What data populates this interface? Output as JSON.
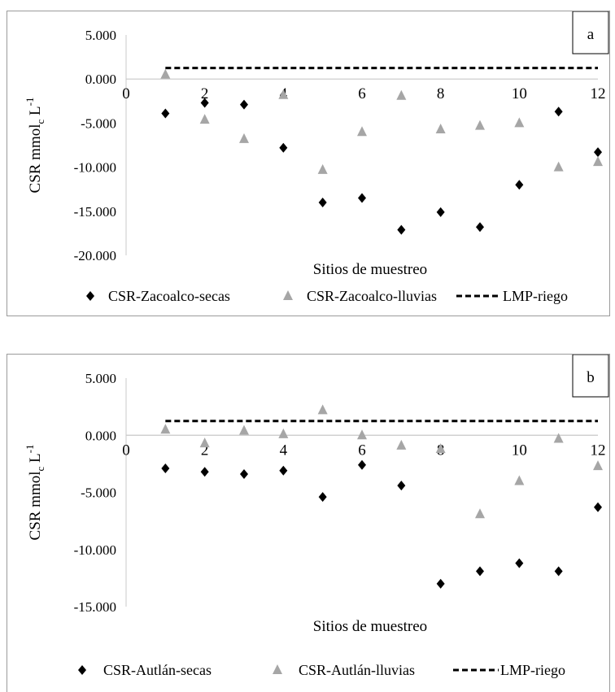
{
  "colors": {
    "secas": "#000000",
    "lluvias": "#a6a6a6",
    "lmp": "#000000"
  },
  "chart_data": [
    {
      "type": "scatter",
      "panel_label": "a",
      "xlabel": "Sitios de muestreo",
      "ylabel_main": "CSR mmol",
      "ylabel_sub": "c",
      "ylabel_unit": " L",
      "ylabel_sup": "-1",
      "ylim": [
        -20,
        5
      ],
      "xlim": [
        0,
        12
      ],
      "y_ticks": [
        5,
        0,
        -5,
        -10,
        -15,
        -20
      ],
      "y_tick_labels": [
        "5.000",
        "0.000",
        "-5.000",
        "-10.000",
        "-15.000",
        "-20.000"
      ],
      "x_ticks": [
        0,
        2,
        4,
        6,
        8,
        10,
        12
      ],
      "x_tick_labels": [
        "0",
        "2",
        "4",
        "6",
        "8",
        "10",
        "12"
      ],
      "legend_position": "bottom",
      "series": [
        {
          "name": "CSR-Zacoalco-secas",
          "marker": "diamond",
          "x": [
            1,
            2,
            3,
            4,
            5,
            6,
            7,
            8,
            9,
            10,
            11,
            12
          ],
          "y": [
            -3.9,
            -2.7,
            -2.9,
            -7.8,
            -14.0,
            -13.5,
            -17.1,
            -15.1,
            -16.8,
            -12.0,
            -3.7,
            -8.3
          ]
        },
        {
          "name": "CSR-Zacoalco-lluvias",
          "marker": "triangle",
          "x": [
            1,
            2,
            3,
            4,
            5,
            6,
            7,
            8,
            9,
            10,
            11,
            12
          ],
          "y": [
            0.5,
            -4.6,
            -6.8,
            -1.8,
            -10.3,
            -6.0,
            -1.9,
            -5.7,
            -5.3,
            -5.0,
            -10.0,
            -9.4
          ]
        },
        {
          "name": "LMP-riego",
          "marker": "dashed-line",
          "x": [
            1,
            12
          ],
          "y": [
            1.25,
            1.25
          ]
        }
      ]
    },
    {
      "type": "scatter",
      "panel_label": "b",
      "xlabel": "Sitios de muestreo",
      "ylabel_main": "CSR mmol",
      "ylabel_sub": "c",
      "ylabel_unit": " L",
      "ylabel_sup": "-1",
      "ylim": [
        -15,
        5
      ],
      "xlim": [
        0,
        12
      ],
      "y_ticks": [
        5,
        0,
        -5,
        -10,
        -15
      ],
      "y_tick_labels": [
        "5.000",
        "0.000",
        "-5.000",
        "-10.000",
        "-15.000"
      ],
      "x_ticks": [
        0,
        2,
        4,
        6,
        8,
        10,
        12
      ],
      "x_tick_labels": [
        "0",
        "2",
        "4",
        "6",
        "8",
        "10",
        "12"
      ],
      "legend_position": "bottom",
      "series": [
        {
          "name": "CSR-Autlán-secas",
          "marker": "diamond",
          "x": [
            1,
            2,
            3,
            4,
            5,
            6,
            7,
            8,
            9,
            10,
            11,
            12
          ],
          "y": [
            -2.9,
            -3.2,
            -3.4,
            -3.1,
            -5.4,
            -2.6,
            -4.4,
            -13.0,
            -11.9,
            -11.2,
            -11.9,
            -6.3
          ]
        },
        {
          "name": "CSR-Autlán-lluvias",
          "marker": "triangle",
          "x": [
            1,
            2,
            3,
            4,
            5,
            6,
            7,
            8,
            9,
            10,
            11,
            12
          ],
          "y": [
            0.5,
            -0.7,
            0.4,
            0.1,
            2.2,
            0.0,
            -0.9,
            -1.2,
            -6.9,
            -4.0,
            -0.3,
            -2.7
          ]
        },
        {
          "name": "LMP-riego",
          "marker": "dashed-line",
          "x": [
            1,
            12
          ],
          "y": [
            1.25,
            1.25
          ]
        }
      ]
    }
  ]
}
